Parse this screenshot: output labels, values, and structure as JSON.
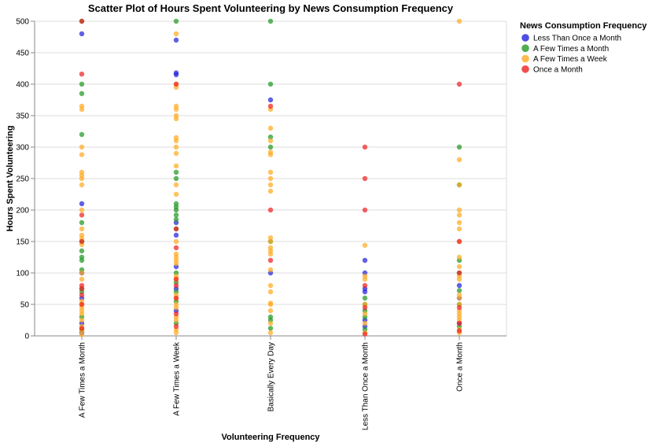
{
  "chart_data": {
    "type": "scatter",
    "title": "Scatter Plot of Hours Spent Volunteering by News Consumption Frequency",
    "xlabel": "Volunteering Frequency",
    "ylabel": "Hours Spent Volunteering",
    "categories": [
      "A Few Times a Month",
      "A Few Times a Week",
      "Basically Every Day",
      "Less Than Once a Month",
      "Once a Month"
    ],
    "ylim": [
      0,
      500
    ],
    "yticks": [
      0,
      50,
      100,
      150,
      200,
      250,
      300,
      350,
      400,
      450,
      500
    ],
    "grid": true,
    "legend": {
      "title": "News Consumption Frequency",
      "placement": "right"
    },
    "series": [
      {
        "name": "Less Than Once a Month",
        "color": "#2222dd",
        "points": [
          [
            "A Few Times a Month",
            480
          ],
          [
            "A Few Times a Month",
            210
          ],
          [
            "A Few Times a Month",
            100
          ],
          [
            "A Few Times a Month",
            60
          ],
          [
            "A Few Times a Month",
            20
          ],
          [
            "A Few Times a Month",
            5
          ],
          [
            "A Few Times a Week",
            470
          ],
          [
            "A Few Times a Week",
            418
          ],
          [
            "A Few Times a Week",
            415
          ],
          [
            "A Few Times a Week",
            180
          ],
          [
            "A Few Times a Week",
            160
          ],
          [
            "A Few Times a Week",
            110
          ],
          [
            "A Few Times a Week",
            75
          ],
          [
            "A Few Times a Week",
            40
          ],
          [
            "Basically Every Day",
            375
          ],
          [
            "Basically Every Day",
            100
          ],
          [
            "Less Than Once a Month",
            120
          ],
          [
            "Less Than Once a Month",
            100
          ],
          [
            "Less Than Once a Month",
            75
          ],
          [
            "Less Than Once a Month",
            70
          ],
          [
            "Less Than Once a Month",
            25
          ],
          [
            "Less Than Once a Month",
            15
          ],
          [
            "Once a Month",
            80
          ],
          [
            "Once a Month",
            60
          ],
          [
            "Once a Month",
            20
          ]
        ]
      },
      {
        "name": "A Few Times a Month",
        "color": "#229922",
        "points": [
          [
            "A Few Times a Month",
            500
          ],
          [
            "A Few Times a Month",
            400
          ],
          [
            "A Few Times a Month",
            385
          ],
          [
            "A Few Times a Month",
            320
          ],
          [
            "A Few Times a Month",
            180
          ],
          [
            "A Few Times a Month",
            150
          ],
          [
            "A Few Times a Month",
            135
          ],
          [
            "A Few Times a Month",
            125
          ],
          [
            "A Few Times a Month",
            120
          ],
          [
            "A Few Times a Month",
            105
          ],
          [
            "A Few Times a Month",
            75
          ],
          [
            "A Few Times a Month",
            70
          ],
          [
            "A Few Times a Month",
            30
          ],
          [
            "A Few Times a Month",
            10
          ],
          [
            "A Few Times a Week",
            500
          ],
          [
            "A Few Times a Week",
            260
          ],
          [
            "A Few Times a Week",
            250
          ],
          [
            "A Few Times a Week",
            210
          ],
          [
            "A Few Times a Week",
            205
          ],
          [
            "A Few Times a Week",
            200
          ],
          [
            "A Few Times a Week",
            192
          ],
          [
            "A Few Times a Week",
            185
          ],
          [
            "A Few Times a Week",
            170
          ],
          [
            "A Few Times a Week",
            100
          ],
          [
            "A Few Times a Week",
            85
          ],
          [
            "A Few Times a Week",
            70
          ],
          [
            "A Few Times a Week",
            55
          ],
          [
            "A Few Times a Week",
            20
          ],
          [
            "Basically Every Day",
            500
          ],
          [
            "Basically Every Day",
            400
          ],
          [
            "Basically Every Day",
            316
          ],
          [
            "Basically Every Day",
            300
          ],
          [
            "Basically Every Day",
            150
          ],
          [
            "Basically Every Day",
            30
          ],
          [
            "Basically Every Day",
            25
          ],
          [
            "Basically Every Day",
            12
          ],
          [
            "Less Than Once a Month",
            60
          ],
          [
            "Less Than Once a Month",
            50
          ],
          [
            "Less Than Once a Month",
            40
          ],
          [
            "Less Than Once a Month",
            30
          ],
          [
            "Less Than Once a Month",
            10
          ],
          [
            "Once a Month",
            300
          ],
          [
            "Once a Month",
            240
          ],
          [
            "Once a Month",
            120
          ],
          [
            "Once a Month",
            100
          ],
          [
            "Once a Month",
            72
          ],
          [
            "Once a Month",
            50
          ],
          [
            "Once a Month",
            15
          ]
        ]
      },
      {
        "name": "A Few Times a Week",
        "color": "#ffaa22",
        "points": [
          [
            "A Few Times a Month",
            365
          ],
          [
            "A Few Times a Month",
            360
          ],
          [
            "A Few Times a Month",
            300
          ],
          [
            "A Few Times a Month",
            288
          ],
          [
            "A Few Times a Month",
            260
          ],
          [
            "A Few Times a Month",
            255
          ],
          [
            "A Few Times a Month",
            250
          ],
          [
            "A Few Times a Month",
            240
          ],
          [
            "A Few Times a Month",
            200
          ],
          [
            "A Few Times a Month",
            170
          ],
          [
            "A Few Times a Month",
            160
          ],
          [
            "A Few Times a Month",
            155
          ],
          [
            "A Few Times a Month",
            145
          ],
          [
            "A Few Times a Month",
            100
          ],
          [
            "A Few Times a Month",
            90
          ],
          [
            "A Few Times a Month",
            55
          ],
          [
            "A Few Times a Month",
            50
          ],
          [
            "A Few Times a Month",
            45
          ],
          [
            "A Few Times a Month",
            40
          ],
          [
            "A Few Times a Month",
            35
          ],
          [
            "A Few Times a Month",
            25
          ],
          [
            "A Few Times a Month",
            15
          ],
          [
            "A Few Times a Month",
            8
          ],
          [
            "A Few Times a Month",
            2
          ],
          [
            "A Few Times a Week",
            480
          ],
          [
            "A Few Times a Week",
            400
          ],
          [
            "A Few Times a Week",
            395
          ],
          [
            "A Few Times a Week",
            365
          ],
          [
            "A Few Times a Week",
            360
          ],
          [
            "A Few Times a Week",
            350
          ],
          [
            "A Few Times a Week",
            345
          ],
          [
            "A Few Times a Week",
            315
          ],
          [
            "A Few Times a Week",
            310
          ],
          [
            "A Few Times a Week",
            300
          ],
          [
            "A Few Times a Week",
            290
          ],
          [
            "A Few Times a Week",
            270
          ],
          [
            "A Few Times a Week",
            240
          ],
          [
            "A Few Times a Week",
            225
          ],
          [
            "A Few Times a Week",
            150
          ],
          [
            "A Few Times a Week",
            130
          ],
          [
            "A Few Times a Week",
            125
          ],
          [
            "A Few Times a Week",
            120
          ],
          [
            "A Few Times a Week",
            115
          ],
          [
            "A Few Times a Week",
            95
          ],
          [
            "A Few Times a Week",
            90
          ],
          [
            "A Few Times a Week",
            65
          ],
          [
            "A Few Times a Week",
            60
          ],
          [
            "A Few Times a Week",
            50
          ],
          [
            "A Few Times a Week",
            45
          ],
          [
            "A Few Times a Week",
            30
          ],
          [
            "A Few Times a Week",
            25
          ],
          [
            "A Few Times a Week",
            10
          ],
          [
            "A Few Times a Week",
            5
          ],
          [
            "Basically Every Day",
            360
          ],
          [
            "Basically Every Day",
            330
          ],
          [
            "Basically Every Day",
            310
          ],
          [
            "Basically Every Day",
            292
          ],
          [
            "Basically Every Day",
            288
          ],
          [
            "Basically Every Day",
            260
          ],
          [
            "Basically Every Day",
            250
          ],
          [
            "Basically Every Day",
            240
          ],
          [
            "Basically Every Day",
            230
          ],
          [
            "Basically Every Day",
            156
          ],
          [
            "Basically Every Day",
            150
          ],
          [
            "Basically Every Day",
            140
          ],
          [
            "Basically Every Day",
            135
          ],
          [
            "Basically Every Day",
            130
          ],
          [
            "Basically Every Day",
            105
          ],
          [
            "Basically Every Day",
            80
          ],
          [
            "Basically Every Day",
            70
          ],
          [
            "Basically Every Day",
            52
          ],
          [
            "Basically Every Day",
            50
          ],
          [
            "Basically Every Day",
            40
          ],
          [
            "Basically Every Day",
            20
          ],
          [
            "Basically Every Day",
            5
          ],
          [
            "Less Than Once a Month",
            144
          ],
          [
            "Less Than Once a Month",
            95
          ],
          [
            "Less Than Once a Month",
            90
          ],
          [
            "Less Than Once a Month",
            50
          ],
          [
            "Less Than Once a Month",
            35
          ],
          [
            "Less Than Once a Month",
            20
          ],
          [
            "Less Than Once a Month",
            5
          ],
          [
            "Once a Month",
            500
          ],
          [
            "Once a Month",
            280
          ],
          [
            "Once a Month",
            240
          ],
          [
            "Once a Month",
            200
          ],
          [
            "Once a Month",
            192
          ],
          [
            "Once a Month",
            180
          ],
          [
            "Once a Month",
            170
          ],
          [
            "Once a Month",
            150
          ],
          [
            "Once a Month",
            125
          ],
          [
            "Once a Month",
            110
          ],
          [
            "Once a Month",
            95
          ],
          [
            "Once a Month",
            90
          ],
          [
            "Once a Month",
            65
          ],
          [
            "Once a Month",
            60
          ],
          [
            "Once a Month",
            50
          ],
          [
            "Once a Month",
            40
          ],
          [
            "Once a Month",
            35
          ],
          [
            "Once a Month",
            30
          ],
          [
            "Once a Month",
            25
          ],
          [
            "Once a Month",
            10
          ],
          [
            "Once a Month",
            5
          ]
        ]
      },
      {
        "name": "Once a Month",
        "color": "#ee2222",
        "points": [
          [
            "A Few Times a Month",
            500
          ],
          [
            "A Few Times a Month",
            416
          ],
          [
            "A Few Times a Month",
            192
          ],
          [
            "A Few Times a Month",
            150
          ],
          [
            "A Few Times a Month",
            80
          ],
          [
            "A Few Times a Month",
            75
          ],
          [
            "A Few Times a Month",
            65
          ],
          [
            "A Few Times a Month",
            50
          ],
          [
            "A Few Times a Month",
            12
          ],
          [
            "A Few Times a Week",
            400
          ],
          [
            "A Few Times a Week",
            170
          ],
          [
            "A Few Times a Week",
            140
          ],
          [
            "A Few Times a Week",
            90
          ],
          [
            "A Few Times a Week",
            80
          ],
          [
            "A Few Times a Week",
            60
          ],
          [
            "A Few Times a Week",
            35
          ],
          [
            "A Few Times a Week",
            15
          ],
          [
            "Basically Every Day",
            365
          ],
          [
            "Basically Every Day",
            200
          ],
          [
            "Basically Every Day",
            120
          ],
          [
            "Less Than Once a Month",
            300
          ],
          [
            "Less Than Once a Month",
            250
          ],
          [
            "Less Than Once a Month",
            200
          ],
          [
            "Less Than Once a Month",
            80
          ],
          [
            "Less Than Once a Month",
            45
          ],
          [
            "Less Than Once a Month",
            3
          ],
          [
            "Once a Month",
            400
          ],
          [
            "Once a Month",
            150
          ],
          [
            "Once a Month",
            100
          ],
          [
            "Once a Month",
            45
          ],
          [
            "Once a Month",
            20
          ],
          [
            "Once a Month",
            8
          ]
        ]
      }
    ]
  }
}
